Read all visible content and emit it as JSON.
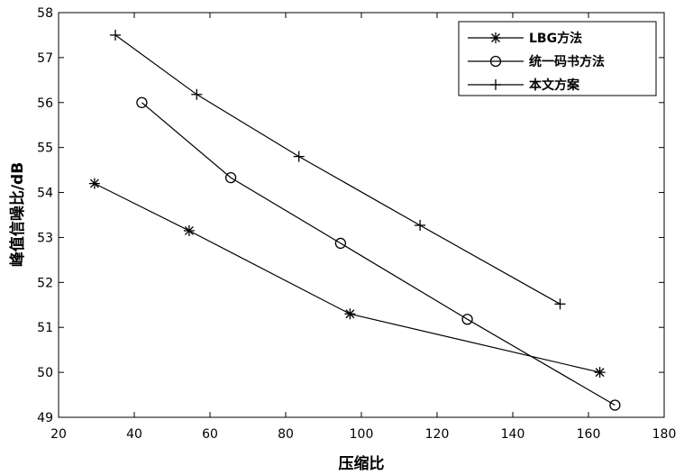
{
  "chart_data": {
    "type": "line",
    "title": "",
    "xlabel": "压缩比",
    "ylabel": "峰值信噪比/dB",
    "xlim": [
      20,
      180
    ],
    "ylim": [
      49,
      58
    ],
    "xticks": [
      20,
      40,
      60,
      80,
      100,
      120,
      140,
      160,
      180
    ],
    "yticks": [
      49,
      50,
      51,
      52,
      53,
      54,
      55,
      56,
      57,
      58
    ],
    "grid": false,
    "legend_position": "top-right",
    "series": [
      {
        "name": "LBG方法",
        "marker": "asterisk",
        "points": [
          {
            "x": 29.5,
            "y": 54.2
          },
          {
            "x": 54.5,
            "y": 53.15
          },
          {
            "x": 97,
            "y": 51.3
          },
          {
            "x": 163,
            "y": 50.0
          }
        ]
      },
      {
        "name": "统一码书方法",
        "marker": "circle",
        "points": [
          {
            "x": 42,
            "y": 56.0
          },
          {
            "x": 65.5,
            "y": 54.33
          },
          {
            "x": 94.5,
            "y": 52.87
          },
          {
            "x": 128,
            "y": 51.18
          },
          {
            "x": 167,
            "y": 49.27
          }
        ]
      },
      {
        "name": "本文方案",
        "marker": "plus",
        "points": [
          {
            "x": 35,
            "y": 57.5
          },
          {
            "x": 56.5,
            "y": 56.18
          },
          {
            "x": 83.5,
            "y": 54.8
          },
          {
            "x": 115.5,
            "y": 53.27
          },
          {
            "x": 152.5,
            "y": 51.52
          }
        ]
      }
    ]
  }
}
